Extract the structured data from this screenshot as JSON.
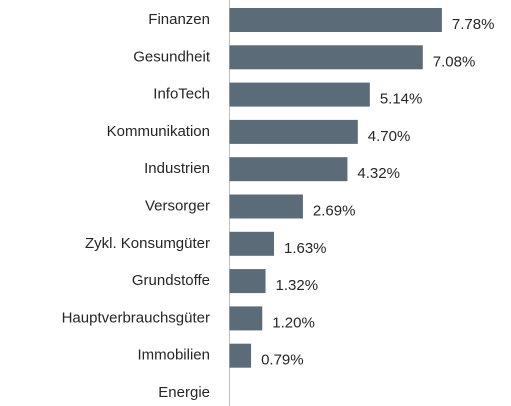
{
  "chart_data": {
    "type": "bar",
    "orientation": "horizontal",
    "categories": [
      "Finanzen",
      "Gesundheit",
      "InfoTech",
      "Kommunikation",
      "Industrien",
      "Versorger",
      "Zykl. Konsumgüter",
      "Grundstoffe",
      "Hauptverbrauchsgüter",
      "Immobilien",
      "Energie"
    ],
    "values": [
      7.78,
      7.08,
      5.14,
      4.7,
      4.32,
      2.69,
      1.63,
      1.32,
      1.2,
      0.79,
      null
    ],
    "value_labels": [
      "7.78%",
      "7.08%",
      "5.14%",
      "4.70%",
      "4.32%",
      "2.69%",
      "1.63%",
      "1.32%",
      "1.20%",
      "0.79%",
      null
    ],
    "color": "#5b6b78",
    "xlim": [
      0,
      10
    ]
  }
}
